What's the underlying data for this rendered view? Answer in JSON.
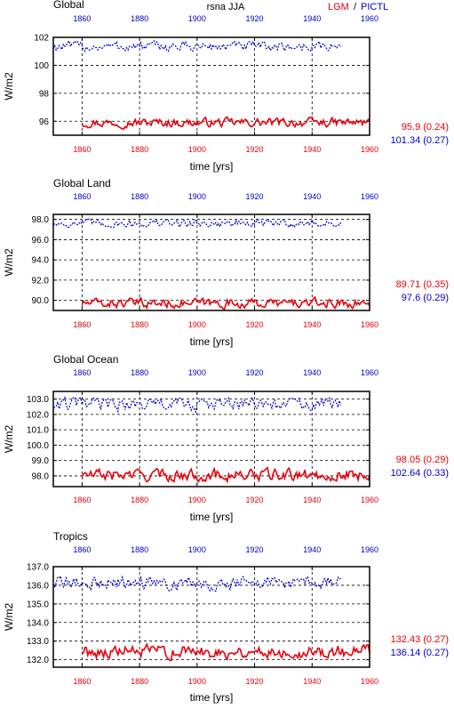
{
  "header": {
    "variable": "rsna JJA",
    "lgm_label": "LGM",
    "separator": "/",
    "pictl_label": "PICTL"
  },
  "colors": {
    "lgm": "#e8000b",
    "pictl": "#0000cc",
    "grid": "#000000"
  },
  "chart_data": [
    {
      "type": "line",
      "title": "Global",
      "xlabel": "time [yrs]",
      "ylabel": "W/m2",
      "xlim": [
        1850,
        1960
      ],
      "ylim": [
        95.0,
        102.0
      ],
      "x_ticks_bottom": [
        "1860",
        "1880",
        "1900",
        "1920",
        "1940",
        "1960"
      ],
      "x_ticks_top": [
        "1860",
        "1880",
        "1900",
        "1920",
        "1940",
        "1960"
      ],
      "y_ticks": [
        "96",
        "98",
        "100",
        "102"
      ],
      "y_tick_values": [
        96,
        98,
        100,
        102
      ],
      "series": [
        {
          "name": "LGM",
          "mean": 95.9,
          "spread": 0.24,
          "x_end": 1960,
          "stat_label": "95.9 (0.24)"
        },
        {
          "name": "PICTL",
          "mean": 101.34,
          "spread": 0.27,
          "x_end": 1950,
          "stat_label": "101.34 (0.27)"
        }
      ]
    },
    {
      "type": "line",
      "title": "Global Land",
      "xlabel": "time [yrs]",
      "ylabel": "W/m2",
      "xlim": [
        1850,
        1960
      ],
      "ylim": [
        89.0,
        98.5
      ],
      "x_ticks_bottom": [
        "1860",
        "1880",
        "1900",
        "1920",
        "1940",
        "1960"
      ],
      "x_ticks_top": [
        "1860",
        "1880",
        "1900",
        "1920",
        "1940",
        "1960"
      ],
      "y_ticks": [
        "90.0",
        "92.0",
        "94.0",
        "96.0",
        "98.0"
      ],
      "y_tick_values": [
        90,
        92,
        94,
        96,
        98
      ],
      "series": [
        {
          "name": "LGM",
          "mean": 89.71,
          "spread": 0.35,
          "x_end": 1960,
          "stat_label": "89.71 (0.35)"
        },
        {
          "name": "PICTL",
          "mean": 97.6,
          "spread": 0.29,
          "x_end": 1950,
          "stat_label": "97.6 (0.29)"
        }
      ]
    },
    {
      "type": "line",
      "title": "Global Ocean",
      "xlabel": "time [yrs]",
      "ylabel": "W/m2",
      "xlim": [
        1850,
        1960
      ],
      "ylim": [
        97.3,
        103.5
      ],
      "x_ticks_bottom": [
        "1860",
        "1880",
        "1900",
        "1920",
        "1940",
        "1960"
      ],
      "x_ticks_top": [
        "1860",
        "1880",
        "1900",
        "1920",
        "1940",
        "1960"
      ],
      "y_ticks": [
        "98.0",
        "99.0",
        "100.0",
        "101.0",
        "102.0",
        "103.0"
      ],
      "y_tick_values": [
        98,
        99,
        100,
        101,
        102,
        103
      ],
      "series": [
        {
          "name": "LGM",
          "mean": 98.05,
          "spread": 0.29,
          "x_end": 1960,
          "stat_label": "98.05 (0.29)"
        },
        {
          "name": "PICTL",
          "mean": 102.64,
          "spread": 0.33,
          "x_end": 1950,
          "stat_label": "102.64 (0.33)"
        }
      ]
    },
    {
      "type": "line",
      "title": "Tropics",
      "xlabel": "time [yrs]",
      "ylabel": "W/m2",
      "xlim": [
        1850,
        1960
      ],
      "ylim": [
        131.6,
        137.0
      ],
      "x_ticks_bottom": [
        "1860",
        "1880",
        "1900",
        "1920",
        "1940",
        "1960"
      ],
      "x_ticks_top": [
        "1860",
        "1880",
        "1900",
        "1920",
        "1940",
        "1960"
      ],
      "y_ticks": [
        "132.0",
        "133.0",
        "134.0",
        "135.0",
        "136.0",
        "137.0"
      ],
      "y_tick_values": [
        132,
        133,
        134,
        135,
        136,
        137
      ],
      "series": [
        {
          "name": "LGM",
          "mean": 132.43,
          "spread": 0.27,
          "x_end": 1960,
          "stat_label": "132.43 (0.27)"
        },
        {
          "name": "PICTL",
          "mean": 136.14,
          "spread": 0.27,
          "x_end": 1950,
          "stat_label": "136.14 (0.27)"
        }
      ]
    }
  ]
}
